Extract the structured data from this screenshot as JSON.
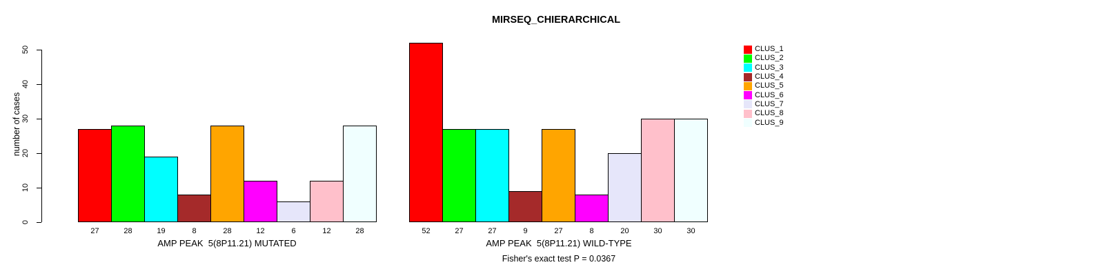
{
  "chart_data": {
    "type": "bar",
    "title": "MIRSEQ_CHIERARCHICAL",
    "ylabel": "number of cases",
    "ylim": [
      0,
      52
    ],
    "yticks": [
      0,
      10,
      20,
      30,
      40,
      50
    ],
    "grid": false,
    "legend_position": "right",
    "categories": [
      "CLUS_1",
      "CLUS_2",
      "CLUS_3",
      "CLUS_4",
      "CLUS_5",
      "CLUS_6",
      "CLUS_7",
      "CLUS_8",
      "CLUS_9"
    ],
    "colors": [
      "#FF0000",
      "#00FF00",
      "#00FFFF",
      "#A52A2A",
      "#FFA500",
      "#FF00FF",
      "#E6E6FA",
      "#FFC0CB",
      "#F0FFFF"
    ],
    "groups": [
      {
        "xlabel": "AMP PEAK  5(8P11.21) MUTATED",
        "values": [
          27,
          28,
          19,
          8,
          28,
          12,
          6,
          12,
          28
        ]
      },
      {
        "xlabel": "AMP PEAK  5(8P11.21) WILD-TYPE",
        "values": [
          52,
          27,
          27,
          9,
          27,
          8,
          20,
          30,
          30
        ]
      }
    ],
    "annotation": "Fisher's exact test P = 0.0367",
    "bar_border_color": "#000000",
    "background_color": "#FFFFFF"
  }
}
